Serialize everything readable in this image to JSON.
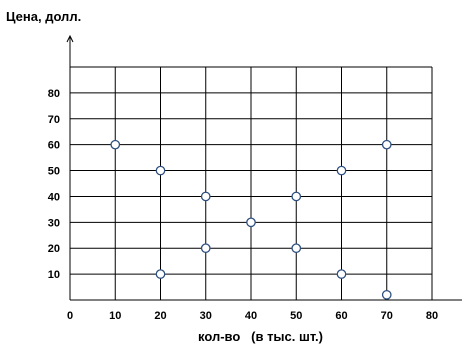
{
  "chart_data": {
    "type": "scatter",
    "ylabel": "Цена, долл.",
    "xlabel": "кол-во   (в тыс. шт.)",
    "xlim": [
      0,
      80
    ],
    "ylim": [
      0,
      90
    ],
    "x_ticks": [
      0,
      10,
      20,
      30,
      40,
      50,
      60,
      70,
      80
    ],
    "y_ticks": [
      10,
      20,
      30,
      40,
      50,
      60,
      70,
      80
    ],
    "grid": true,
    "marker": "hollow-circle",
    "points": [
      {
        "x": 10,
        "y": 60
      },
      {
        "x": 20,
        "y": 50
      },
      {
        "x": 20,
        "y": 10
      },
      {
        "x": 30,
        "y": 40
      },
      {
        "x": 30,
        "y": 20
      },
      {
        "x": 40,
        "y": 30
      },
      {
        "x": 50,
        "y": 40
      },
      {
        "x": 50,
        "y": 20
      },
      {
        "x": 60,
        "y": 50
      },
      {
        "x": 60,
        "y": 10
      },
      {
        "x": 70,
        "y": 60
      },
      {
        "x": 70,
        "y": 2
      }
    ]
  }
}
